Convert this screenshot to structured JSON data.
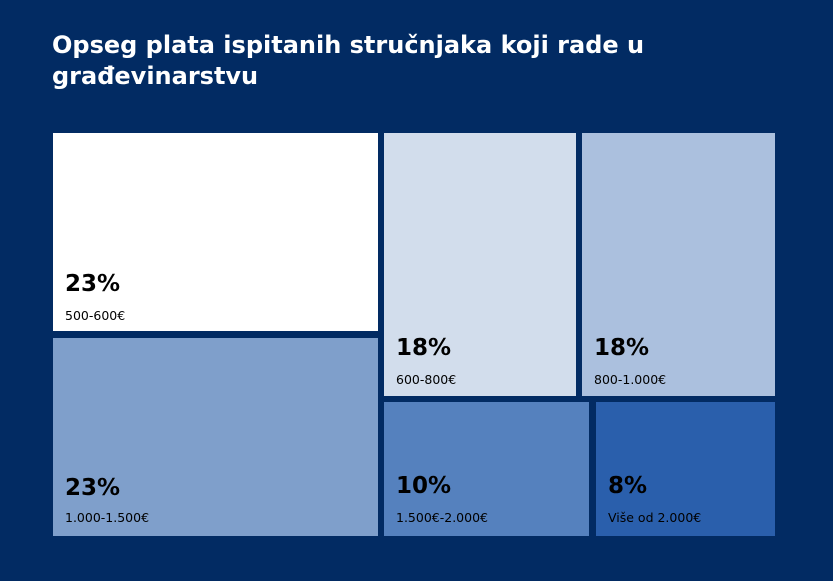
{
  "chart_data": {
    "type": "treemap",
    "title": "Opseg plata ispitanih stručnjaka koji rade u građevinarstvu",
    "series": [
      {
        "label": "500-600€",
        "value": 23,
        "value_label": "23%",
        "color": "#ffffff"
      },
      {
        "label": "1.000-1.500€",
        "value": 23,
        "value_label": "23%",
        "color": "#7f9fcb"
      },
      {
        "label": "600-800€",
        "value": 18,
        "value_label": "18%",
        "color": "#d2ddec"
      },
      {
        "label": "800-1.000€",
        "value": 18,
        "value_label": "18%",
        "color": "#abc0de"
      },
      {
        "label": "1.500€-2.000€",
        "value": 10,
        "value_label": "10%",
        "color": "#5581be"
      },
      {
        "label": "Više od 2.000€",
        "value": 8,
        "value_label": "8%",
        "color": "#2a5fac"
      }
    ]
  }
}
